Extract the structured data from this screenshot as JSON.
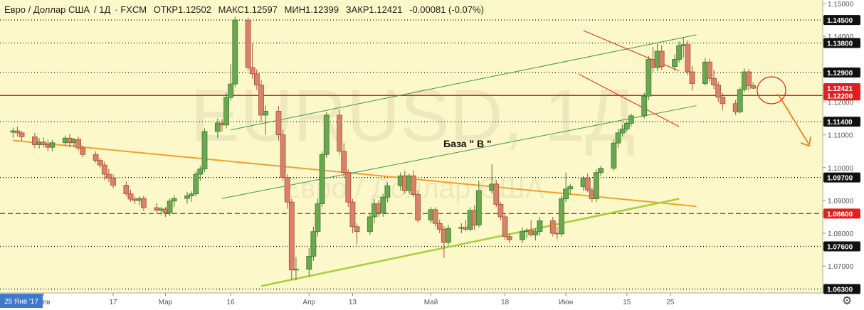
{
  "header": {
    "symbol": "Евро / Доллар США",
    "timeframe": "1Д",
    "source": "FXCM",
    "open": "ОТКР1.12502",
    "high": "МАКС1.12597",
    "low": "МИН1.12399",
    "close": "ЗАКР1.12421",
    "change": "-0.00081 (-0.07%)"
  },
  "watermark": {
    "symbol": "EURUSD, 1Д",
    "name": "Евро / Доллар США"
  },
  "annotation": "База \" В \"",
  "colors": {
    "background": "#fdf8c9",
    "up": "#6aa84f",
    "down": "#d9826a",
    "hline_red": "#e02020",
    "channel_green": "#3c9a3c",
    "orange": "#f0a030",
    "lime": "#a8d040",
    "arrow": "#f08020",
    "price_tag": "#e02020"
  },
  "chart_data": {
    "type": "candlestick",
    "y_axis": {
      "ticks": [
        "1.15000",
        "1.14000",
        "1.13000",
        "1.12000",
        "1.11000",
        "1.10000",
        "1.09000",
        "1.08000",
        "1.07000"
      ],
      "highlighted_levels": [
        "1.14500",
        "1.13800",
        "1.12900",
        "1.12200",
        "1.11400",
        "1.09700",
        "1.08600",
        "1.07600",
        "1.06300"
      ],
      "current_price": "1.12421",
      "range": [
        1.0618,
        1.1511
      ]
    },
    "x_axis": {
      "labels": [
        "Фев",
        "17",
        "Мар",
        "16",
        "Апр",
        "13",
        "Май",
        "18",
        "Июн",
        "15",
        "25"
      ],
      "label_dates": [
        "2017-02-01",
        "2017-02-17",
        "2017-03-01",
        "2017-03-16",
        "2017-04-03",
        "2017-04-13",
        "2017-05-01",
        "2017-05-18",
        "2017-06-01",
        "2017-06-15",
        "2017-06-25"
      ],
      "cursor_label": "25 Янв '17"
    },
    "horizontal_levels": [
      {
        "price": 1.145,
        "style": "dotted",
        "color": "#000000"
      },
      {
        "price": 1.138,
        "style": "dotted",
        "color": "#000000"
      },
      {
        "price": 1.129,
        "style": "dotted",
        "color": "#000000"
      },
      {
        "price": 1.122,
        "style": "solid",
        "color": "#e02020"
      },
      {
        "price": 1.114,
        "style": "dotted",
        "color": "#000000"
      },
      {
        "price": 1.097,
        "style": "dotted",
        "color": "#000000"
      },
      {
        "price": 1.086,
        "style": "dashed",
        "color": "#e02020"
      },
      {
        "price": 1.076,
        "style": "dotted",
        "color": "#000000"
      },
      {
        "price": 1.063,
        "style": "dotted",
        "color": "#000000"
      }
    ],
    "trendlines": [
      {
        "name": "orange",
        "from": [
          "2017-01-25",
          1.1083
        ],
        "to": [
          "2017-07-01",
          1.0882
        ]
      },
      {
        "name": "lime",
        "from": [
          "2017-03-23",
          1.0639
        ],
        "to": [
          "2017-06-27",
          1.0905
        ]
      },
      {
        "name": "green-upper",
        "from": [
          "2017-03-16",
          1.1115
        ],
        "to": [
          "2017-07-01",
          1.1405
        ]
      },
      {
        "name": "green-lower",
        "from": [
          "2017-03-14",
          1.0906
        ],
        "to": [
          "2017-07-01",
          1.1189
        ]
      },
      {
        "name": "red-upper",
        "from": [
          "2017-06-05",
          1.1418
        ],
        "to": [
          "2017-06-27",
          1.1295
        ]
      },
      {
        "name": "red-lower",
        "from": [
          "2017-06-04",
          1.1285
        ],
        "to": [
          "2017-06-27",
          1.1125
        ]
      }
    ],
    "candles": [
      {
        "date": "2017-01-25",
        "o": 1.1108,
        "h": 1.1122,
        "l": 1.1092,
        "c": 1.1112
      },
      {
        "date": "2017-01-26",
        "o": 1.1112,
        "h": 1.1125,
        "l": 1.1095,
        "c": 1.1106
      },
      {
        "date": "2017-01-27",
        "o": 1.1106,
        "h": 1.1112,
        "l": 1.1082,
        "c": 1.1094
      },
      {
        "date": "2017-01-30",
        "o": 1.1094,
        "h": 1.1106,
        "l": 1.106,
        "c": 1.107
      },
      {
        "date": "2017-01-31",
        "o": 1.107,
        "h": 1.109,
        "l": 1.1058,
        "c": 1.1078
      },
      {
        "date": "2017-02-01",
        "o": 1.1078,
        "h": 1.1092,
        "l": 1.1062,
        "c": 1.107
      },
      {
        "date": "2017-02-02",
        "o": 1.107,
        "h": 1.1085,
        "l": 1.105,
        "c": 1.1062
      },
      {
        "date": "2017-02-03",
        "o": 1.1062,
        "h": 1.1085,
        "l": 1.105,
        "c": 1.1076
      },
      {
        "date": "2017-02-06",
        "o": 1.1076,
        "h": 1.1098,
        "l": 1.1066,
        "c": 1.109
      },
      {
        "date": "2017-02-07",
        "o": 1.109,
        "h": 1.1102,
        "l": 1.1062,
        "c": 1.1076
      },
      {
        "date": "2017-02-08",
        "o": 1.1076,
        "h": 1.109,
        "l": 1.1062,
        "c": 1.1086
      },
      {
        "date": "2017-02-09",
        "o": 1.1086,
        "h": 1.1094,
        "l": 1.1052,
        "c": 1.106
      },
      {
        "date": "2017-02-10",
        "o": 1.106,
        "h": 1.1068,
        "l": 1.1032,
        "c": 1.104
      },
      {
        "date": "2017-02-13",
        "o": 1.104,
        "h": 1.105,
        "l": 1.1015,
        "c": 1.1022
      },
      {
        "date": "2017-02-14",
        "o": 1.1022,
        "h": 1.103,
        "l": 1.0998,
        "c": 1.1008
      },
      {
        "date": "2017-02-15",
        "o": 1.1008,
        "h": 1.1018,
        "l": 1.0962,
        "c": 1.098
      },
      {
        "date": "2017-02-16",
        "o": 1.098,
        "h": 1.0996,
        "l": 1.0956,
        "c": 1.0968
      },
      {
        "date": "2017-02-17",
        "o": 1.0968,
        "h": 1.098,
        "l": 1.0936,
        "c": 1.0946
      },
      {
        "date": "2017-02-20",
        "o": 1.0946,
        "h": 1.0958,
        "l": 1.0912,
        "c": 1.092
      },
      {
        "date": "2017-02-21",
        "o": 1.092,
        "h": 1.0932,
        "l": 1.0896,
        "c": 1.0904
      },
      {
        "date": "2017-02-22",
        "o": 1.0904,
        "h": 1.0912,
        "l": 1.089,
        "c": 1.09
      },
      {
        "date": "2017-02-23",
        "o": 1.09,
        "h": 1.0912,
        "l": 1.0886,
        "c": 1.0906
      },
      {
        "date": "2017-02-24",
        "o": 1.0906,
        "h": 1.0914,
        "l": 1.0868,
        "c": 1.0878
      },
      {
        "date": "2017-02-27",
        "o": 1.0878,
        "h": 1.0892,
        "l": 1.0862,
        "c": 1.087
      },
      {
        "date": "2017-02-28",
        "o": 1.087,
        "h": 1.088,
        "l": 1.0855,
        "c": 1.0874
      },
      {
        "date": "2017-03-01",
        "o": 1.0874,
        "h": 1.088,
        "l": 1.085,
        "c": 1.0862
      },
      {
        "date": "2017-03-02",
        "o": 1.0862,
        "h": 1.0906,
        "l": 1.0852,
        "c": 1.0898
      },
      {
        "date": "2017-03-03",
        "o": 1.0898,
        "h": 1.0916,
        "l": 1.088,
        "c": 1.0906
      },
      {
        "date": "2017-03-06",
        "o": 1.0906,
        "h": 1.0926,
        "l": 1.089,
        "c": 1.0914
      },
      {
        "date": "2017-03-07",
        "o": 1.0914,
        "h": 1.0928,
        "l": 1.0896,
        "c": 1.092
      },
      {
        "date": "2017-03-08",
        "o": 1.092,
        "h": 1.099,
        "l": 1.0912,
        "c": 1.098
      },
      {
        "date": "2017-03-09",
        "o": 1.098,
        "h": 1.1006,
        "l": 1.096,
        "c": 1.0996
      },
      {
        "date": "2017-03-10",
        "o": 1.0996,
        "h": 1.112,
        "l": 1.0986,
        "c": 1.111
      },
      {
        "date": "2017-03-13",
        "o": 1.111,
        "h": 1.115,
        "l": 1.109,
        "c": 1.1136
      },
      {
        "date": "2017-03-14",
        "o": 1.1136,
        "h": 1.1148,
        "l": 1.111,
        "c": 1.113
      },
      {
        "date": "2017-03-15",
        "o": 1.113,
        "h": 1.1228,
        "l": 1.112,
        "c": 1.1214
      },
      {
        "date": "2017-03-16",
        "o": 1.1214,
        "h": 1.1315,
        "l": 1.1205,
        "c": 1.1255
      },
      {
        "date": "2017-03-17",
        "o": 1.1255,
        "h": 1.146,
        "l": 1.1245,
        "c": 1.145
      },
      {
        "date": "2017-03-20",
        "o": 1.145,
        "h": 1.1458,
        "l": 1.1295,
        "c": 1.1305
      },
      {
        "date": "2017-03-21",
        "o": 1.1305,
        "h": 1.138,
        "l": 1.127,
        "c": 1.1286
      },
      {
        "date": "2017-03-22",
        "o": 1.1286,
        "h": 1.13,
        "l": 1.1236,
        "c": 1.1252
      },
      {
        "date": "2017-03-23",
        "o": 1.1252,
        "h": 1.1268,
        "l": 1.114,
        "c": 1.116
      },
      {
        "date": "2017-03-24",
        "o": 1.116,
        "h": 1.119,
        "l": 1.11,
        "c": 1.1172
      },
      {
        "date": "2017-03-27",
        "o": 1.1172,
        "h": 1.1188,
        "l": 1.1082,
        "c": 1.11
      },
      {
        "date": "2017-03-28",
        "o": 1.11,
        "h": 1.1116,
        "l": 1.096,
        "c": 1.097
      },
      {
        "date": "2017-03-29",
        "o": 1.097,
        "h": 1.098,
        "l": 1.0875,
        "c": 1.0895
      },
      {
        "date": "2017-03-30",
        "o": 1.0895,
        "h": 1.0905,
        "l": 1.0658,
        "c": 1.0688
      },
      {
        "date": "2017-03-31",
        "o": 1.0688,
        "h": 1.0728,
        "l": 1.0656,
        "c": 1.069
      },
      {
        "date": "2017-04-03",
        "o": 1.069,
        "h": 1.0755,
        "l": 1.0668,
        "c": 1.073
      },
      {
        "date": "2017-04-04",
        "o": 1.073,
        "h": 1.082,
        "l": 1.0716,
        "c": 1.0805
      },
      {
        "date": "2017-04-05",
        "o": 1.0805,
        "h": 1.0905,
        "l": 1.079,
        "c": 1.089
      },
      {
        "date": "2017-04-06",
        "o": 1.089,
        "h": 1.105,
        "l": 1.088,
        "c": 1.104
      },
      {
        "date": "2017-04-07",
        "o": 1.104,
        "h": 1.117,
        "l": 1.103,
        "c": 1.116
      },
      {
        "date": "2017-04-10",
        "o": 1.116,
        "h": 1.1175,
        "l": 1.104,
        "c": 1.105
      },
      {
        "date": "2017-04-11",
        "o": 1.105,
        "h": 1.1075,
        "l": 1.097,
        "c": 1.0985
      },
      {
        "date": "2017-04-12",
        "o": 1.0985,
        "h": 1.0995,
        "l": 1.088,
        "c": 1.0895
      },
      {
        "date": "2017-04-13",
        "o": 1.0895,
        "h": 1.0905,
        "l": 1.08,
        "c": 1.082
      },
      {
        "date": "2017-04-14",
        "o": 1.082,
        "h": 1.083,
        "l": 1.0765,
        "c": 1.0805
      },
      {
        "date": "2017-04-17",
        "o": 1.0805,
        "h": 1.086,
        "l": 1.0795,
        "c": 1.085
      },
      {
        "date": "2017-04-18",
        "o": 1.085,
        "h": 1.0905,
        "l": 1.083,
        "c": 1.089
      },
      {
        "date": "2017-04-19",
        "o": 1.089,
        "h": 1.0902,
        "l": 1.085,
        "c": 1.0862
      },
      {
        "date": "2017-04-20",
        "o": 1.0862,
        "h": 1.092,
        "l": 1.085,
        "c": 1.091
      },
      {
        "date": "2017-04-21",
        "o": 1.091,
        "h": 1.0955,
        "l": 1.0895,
        "c": 1.0945
      },
      {
        "date": "2017-04-24",
        "o": 1.0945,
        "h": 1.0985,
        "l": 1.093,
        "c": 1.0975
      },
      {
        "date": "2017-04-25",
        "o": 1.0975,
        "h": 1.099,
        "l": 1.092,
        "c": 1.093
      },
      {
        "date": "2017-04-26",
        "o": 1.093,
        "h": 1.0982,
        "l": 1.092,
        "c": 1.0975
      },
      {
        "date": "2017-04-27",
        "o": 1.0975,
        "h": 1.0992,
        "l": 1.091,
        "c": 1.0918
      },
      {
        "date": "2017-04-28",
        "o": 1.0918,
        "h": 1.093,
        "l": 1.0832,
        "c": 1.084
      },
      {
        "date": "2017-05-01",
        "o": 1.084,
        "h": 1.088,
        "l": 1.083,
        "c": 1.0872
      },
      {
        "date": "2017-05-02",
        "o": 1.0872,
        "h": 1.088,
        "l": 1.082,
        "c": 1.083
      },
      {
        "date": "2017-05-03",
        "o": 1.083,
        "h": 1.0842,
        "l": 1.08,
        "c": 1.0812
      },
      {
        "date": "2017-05-04",
        "o": 1.0812,
        "h": 1.0822,
        "l": 1.0725,
        "c": 1.0772
      },
      {
        "date": "2017-05-05",
        "o": 1.0772,
        "h": 1.0825,
        "l": 1.0762,
        "c": 1.0815
      },
      {
        "date": "2017-05-08",
        "o": 1.0815,
        "h": 1.083,
        "l": 1.08,
        "c": 1.0818
      },
      {
        "date": "2017-05-09",
        "o": 1.0818,
        "h": 1.084,
        "l": 1.0806,
        "c": 1.0812
      },
      {
        "date": "2017-05-10",
        "o": 1.0812,
        "h": 1.088,
        "l": 1.0806,
        "c": 1.087
      },
      {
        "date": "2017-05-11",
        "o": 1.087,
        "h": 1.0885,
        "l": 1.081,
        "c": 1.0825
      },
      {
        "date": "2017-05-12",
        "o": 1.0825,
        "h": 1.096,
        "l": 1.0818,
        "c": 1.093
      },
      {
        "date": "2017-05-15",
        "o": 1.093,
        "h": 1.101,
        "l": 1.092,
        "c": 1.095
      },
      {
        "date": "2017-05-16",
        "o": 1.095,
        "h": 1.0962,
        "l": 1.088,
        "c": 1.0888
      },
      {
        "date": "2017-05-17",
        "o": 1.0888,
        "h": 1.0896,
        "l": 1.084,
        "c": 1.085
      },
      {
        "date": "2017-05-18",
        "o": 1.085,
        "h": 1.086,
        "l": 1.078,
        "c": 1.079
      },
      {
        "date": "2017-05-19",
        "o": 1.079,
        "h": 1.08,
        "l": 1.077,
        "c": 1.078
      },
      {
        "date": "2017-05-22",
        "o": 1.078,
        "h": 1.0818,
        "l": 1.077,
        "c": 1.0805
      },
      {
        "date": "2017-05-23",
        "o": 1.0805,
        "h": 1.0815,
        "l": 1.0785,
        "c": 1.0808
      },
      {
        "date": "2017-05-24",
        "o": 1.0808,
        "h": 1.084,
        "l": 1.079,
        "c": 1.0795
      },
      {
        "date": "2017-05-25",
        "o": 1.0795,
        "h": 1.0815,
        "l": 1.0778,
        "c": 1.0805
      },
      {
        "date": "2017-05-26",
        "o": 1.0805,
        "h": 1.085,
        "l": 1.0792,
        "c": 1.0838
      },
      {
        "date": "2017-05-29",
        "o": 1.0838,
        "h": 1.085,
        "l": 1.079,
        "c": 1.08
      },
      {
        "date": "2017-05-30",
        "o": 1.08,
        "h": 1.082,
        "l": 1.0782,
        "c": 1.0798
      },
      {
        "date": "2017-05-31",
        "o": 1.0798,
        "h": 1.0915,
        "l": 1.079,
        "c": 1.0905
      },
      {
        "date": "2017-06-01",
        "o": 1.0905,
        "h": 1.0985,
        "l": 1.0895,
        "c": 1.0935
      },
      {
        "date": "2017-06-02",
        "o": 1.0935,
        "h": 1.095,
        "l": 1.0918,
        "c": 1.0942
      },
      {
        "date": "2017-06-05",
        "o": 1.0942,
        "h": 1.0975,
        "l": 1.093,
        "c": 1.0968
      },
      {
        "date": "2017-06-06",
        "o": 1.0968,
        "h": 1.0982,
        "l": 1.0925,
        "c": 1.0932
      },
      {
        "date": "2017-06-07",
        "o": 1.0932,
        "h": 1.094,
        "l": 1.0895,
        "c": 1.0905
      },
      {
        "date": "2017-06-08",
        "o": 1.0905,
        "h": 1.0995,
        "l": 1.0895,
        "c": 1.0985
      },
      {
        "date": "2017-06-09",
        "o": 1.0985,
        "h": 1.1005,
        "l": 1.0975,
        "c": 1.0998
      },
      {
        "date": "2017-06-12",
        "o": 1.0998,
        "h": 1.1085,
        "l": 1.099,
        "c": 1.1075
      },
      {
        "date": "2017-06-13",
        "o": 1.1075,
        "h": 1.1118,
        "l": 1.106,
        "c": 1.1106
      },
      {
        "date": "2017-06-14",
        "o": 1.1106,
        "h": 1.113,
        "l": 1.1095,
        "c": 1.1118
      },
      {
        "date": "2017-06-15",
        "o": 1.1118,
        "h": 1.114,
        "l": 1.111,
        "c": 1.1135
      },
      {
        "date": "2017-06-16",
        "o": 1.1135,
        "h": 1.1165,
        "l": 1.1125,
        "c": 1.1158
      },
      {
        "date": "2017-06-19",
        "o": 1.1158,
        "h": 1.1228,
        "l": 1.115,
        "c": 1.1218
      },
      {
        "date": "2017-06-20",
        "o": 1.1218,
        "h": 1.134,
        "l": 1.1205,
        "c": 1.133
      },
      {
        "date": "2017-06-21",
        "o": 1.133,
        "h": 1.1368,
        "l": 1.1292,
        "c": 1.1305
      },
      {
        "date": "2017-06-22",
        "o": 1.1305,
        "h": 1.1378,
        "l": 1.1295,
        "c": 1.1355
      },
      {
        "date": "2017-06-23",
        "o": 1.1355,
        "h": 1.1372,
        "l": 1.1298,
        "c": 1.1308
      },
      {
        "date": "2017-06-26",
        "o": 1.1308,
        "h": 1.1345,
        "l": 1.1295,
        "c": 1.133
      },
      {
        "date": "2017-06-27",
        "o": 1.133,
        "h": 1.1385,
        "l": 1.132,
        "c": 1.1372
      },
      {
        "date": "2017-06-28",
        "o": 1.1372,
        "h": 1.1398,
        "l": 1.1335,
        "c": 1.1375
      },
      {
        "date": "2017-06-29",
        "o": 1.1375,
        "h": 1.1388,
        "l": 1.1282,
        "c": 1.1292
      },
      {
        "date": "2017-06-30",
        "o": 1.1292,
        "h": 1.131,
        "l": 1.1235,
        "c": 1.1256
      },
      {
        "date": "2017-07-03",
        "o": 1.1256,
        "h": 1.1335,
        "l": 1.125,
        "c": 1.1322
      },
      {
        "date": "2017-07-04",
        "o": 1.1322,
        "h": 1.1332,
        "l": 1.126,
        "c": 1.1272
      },
      {
        "date": "2017-07-05",
        "o": 1.1272,
        "h": 1.1298,
        "l": 1.124,
        "c": 1.1252
      },
      {
        "date": "2017-07-06",
        "o": 1.1252,
        "h": 1.1262,
        "l": 1.12,
        "c": 1.1215
      },
      {
        "date": "2017-07-07",
        "o": 1.1215,
        "h": 1.1228,
        "l": 1.1175,
        "c": 1.1195
      },
      {
        "date": "2017-07-10",
        "o": 1.1195,
        "h": 1.1206,
        "l": 1.116,
        "c": 1.117
      },
      {
        "date": "2017-07-11",
        "o": 1.117,
        "h": 1.1245,
        "l": 1.1165,
        "c": 1.1238
      },
      {
        "date": "2017-07-12",
        "o": 1.1238,
        "h": 1.1302,
        "l": 1.123,
        "c": 1.1292
      },
      {
        "date": "2017-07-13",
        "o": 1.1292,
        "h": 1.13,
        "l": 1.1235,
        "c": 1.125
      },
      {
        "date": "2017-07-14",
        "o": 1.125,
        "h": 1.126,
        "l": 1.124,
        "c": 1.1242
      }
    ]
  }
}
